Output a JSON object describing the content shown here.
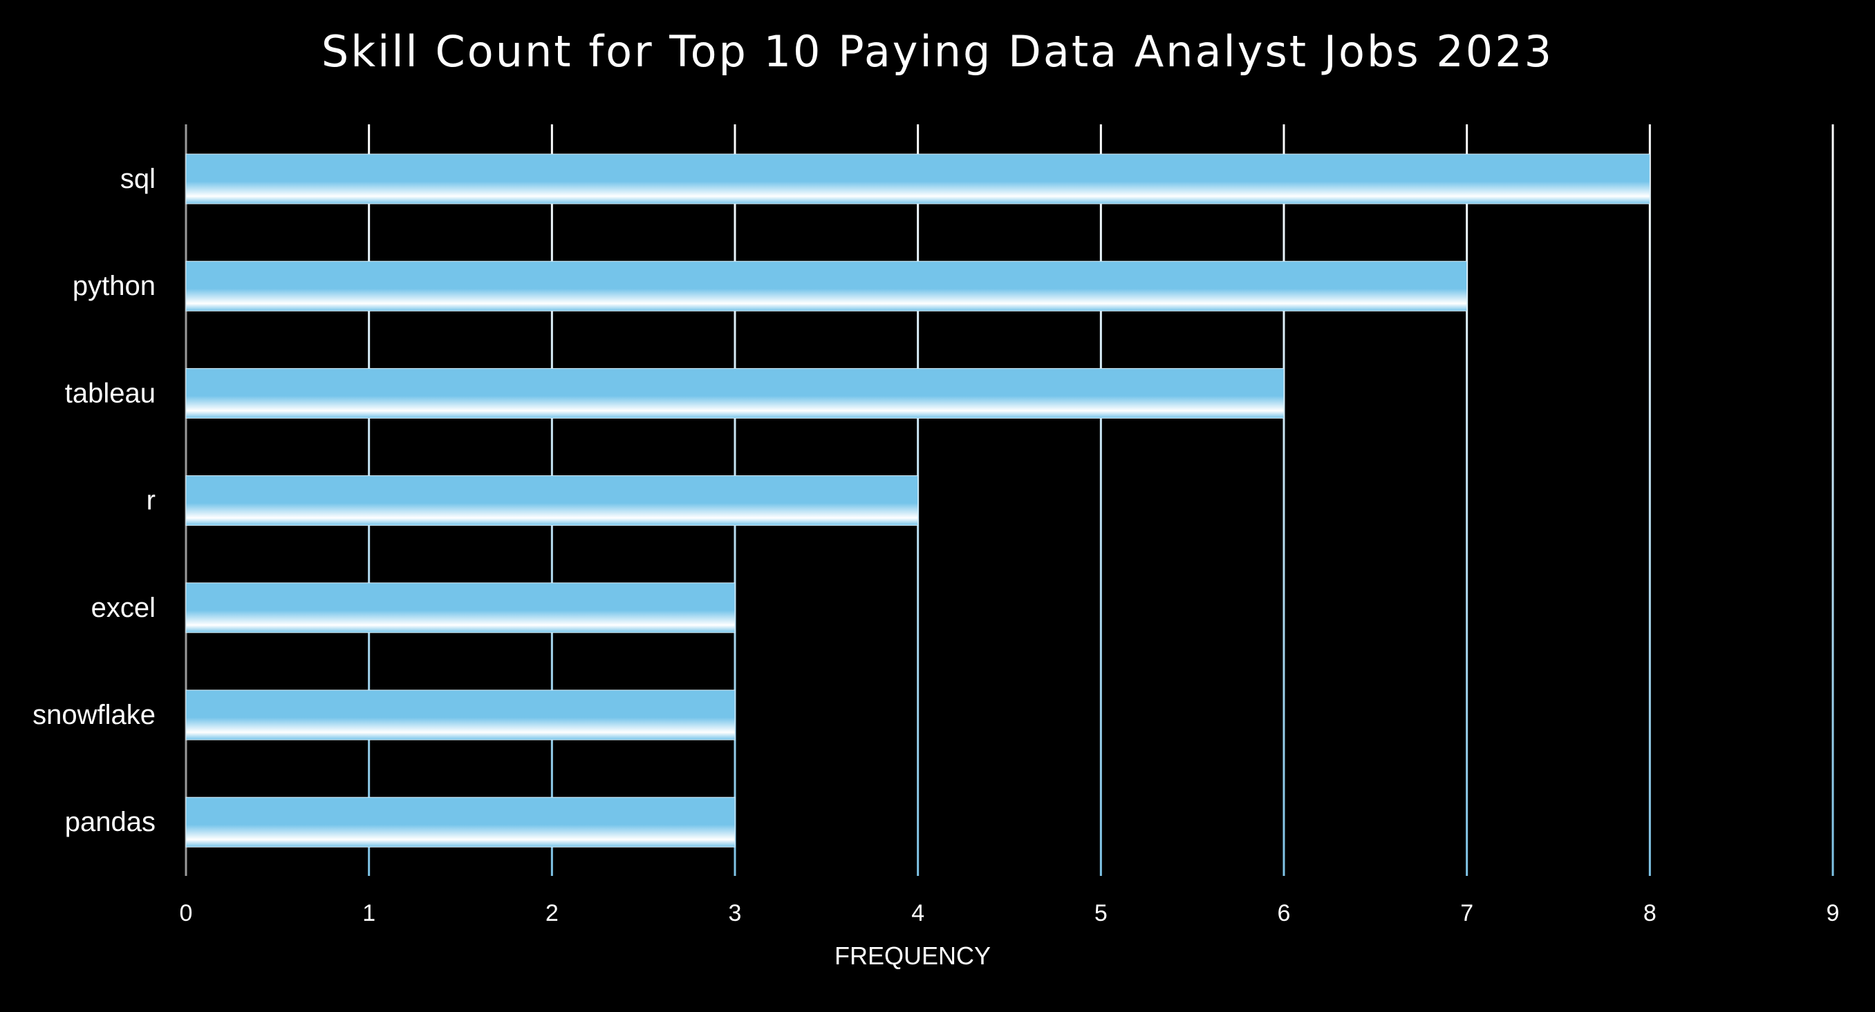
{
  "chart_data": {
    "type": "bar",
    "orientation": "horizontal",
    "title": "Skill Count for Top 10 Paying Data Analyst Jobs 2023",
    "xlabel": "FREQUENCY",
    "ylabel": "",
    "categories": [
      "sql",
      "python",
      "tableau",
      "r",
      "excel",
      "snowflake",
      "pandas"
    ],
    "values": [
      8,
      7,
      6,
      4,
      3,
      3,
      3
    ],
    "xlim": [
      0,
      9
    ],
    "xticks": [
      "0",
      "1",
      "2",
      "3",
      "4",
      "5",
      "6",
      "7",
      "8",
      "9"
    ],
    "grid": "vertical",
    "colors": {
      "background": "#000000",
      "bar": "#75C4EA",
      "bar_highlight": "#ffffff",
      "grid_bottom": "#7ec3e6",
      "grid_top": "#ffffff",
      "text": "#ffffff"
    }
  }
}
